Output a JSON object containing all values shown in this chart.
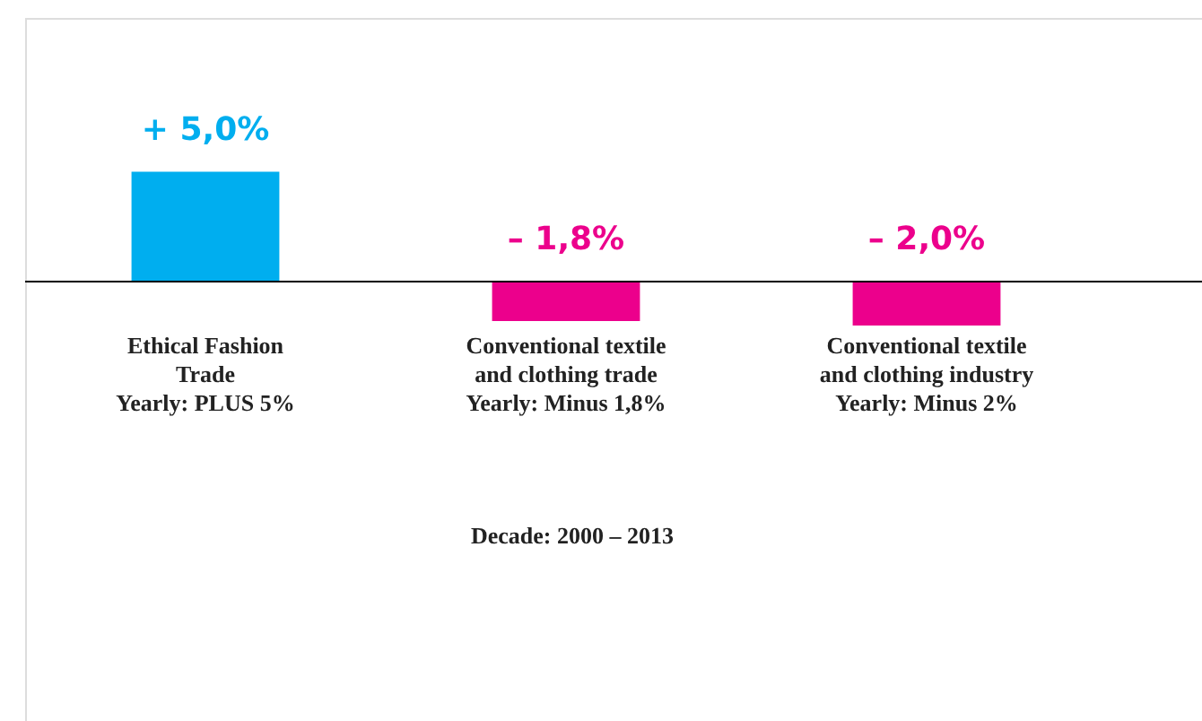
{
  "chart_data": {
    "type": "bar",
    "categories": [
      "Ethical Fashion\nTrade\nYearly: PLUS 5%",
      "Conventional textile\nand clothing trade\nYearly: Minus 1,8%",
      "Conventional textile\nand clothing industry\nYearly: Minus 2%"
    ],
    "values": [
      5.0,
      -1.8,
      -2.0
    ],
    "colors": [
      "#00aeef",
      "#ec008c",
      "#ec008c"
    ],
    "value_labels": [
      "+ 5,0%",
      "– 1,8%",
      "– 2,0%"
    ],
    "ylim": [
      -20,
      12
    ],
    "tick_labels": "x",
    "annotations": [
      "Decade: 2000 – 2013"
    ]
  }
}
